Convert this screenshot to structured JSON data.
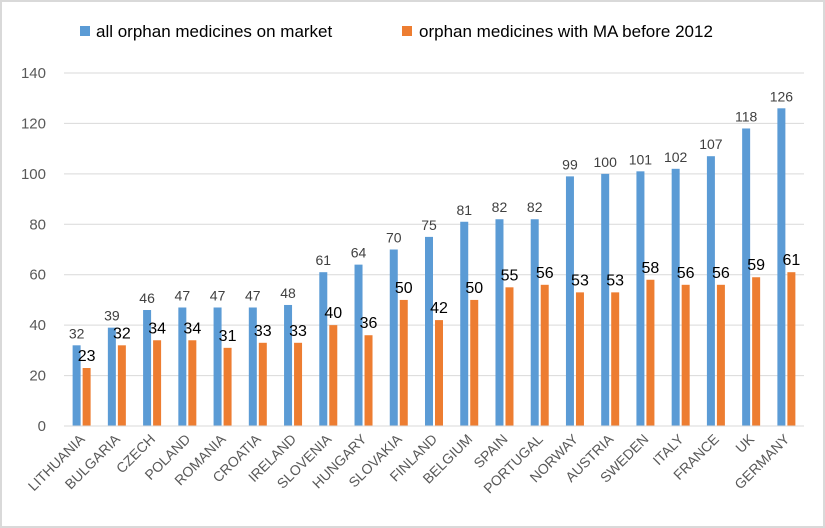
{
  "chart_data": {
    "type": "bar",
    "title": "",
    "xlabel": "",
    "ylabel": "",
    "ylim": [
      0,
      140
    ],
    "yticks": [
      0,
      20,
      40,
      60,
      80,
      100,
      120,
      140
    ],
    "grid": true,
    "legend_position": "top",
    "categories": [
      "LITHUANIA",
      "BULGARIA",
      "CZECH",
      "POLAND",
      "ROMANIA",
      "CROATIA",
      "IRELAND",
      "SLOVENIA",
      "HUNGARY",
      "SLOVAKIA",
      "FINLAND",
      "BELGIUM",
      "SPAIN",
      "PORTUGAL",
      "NORWAY",
      "AUSTRIA",
      "SWEDEN",
      "ITALY",
      "FRANCE",
      "UK",
      "GERMANY"
    ],
    "series": [
      {
        "name": "all orphan medicines on market",
        "color": "#5b9bd5",
        "values": [
          32,
          39,
          46,
          47,
          47,
          47,
          48,
          61,
          64,
          70,
          75,
          81,
          82,
          82,
          99,
          100,
          101,
          102,
          107,
          118,
          126
        ]
      },
      {
        "name": "orphan medicines with MA before 2012",
        "color": "#ed7d31",
        "values": [
          23,
          32,
          34,
          34,
          31,
          33,
          33,
          40,
          36,
          50,
          42,
          50,
          55,
          56,
          53,
          53,
          58,
          56,
          56,
          59,
          61
        ]
      }
    ]
  }
}
